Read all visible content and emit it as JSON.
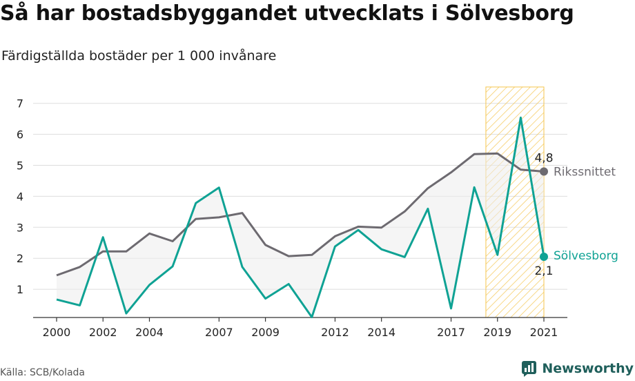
{
  "header": {
    "title": "Så har bostadsbyggandet utvecklats i Sölvesborg",
    "subtitle": "Färdigställda bostäder per 1 000 invånare"
  },
  "footer": {
    "source": "Källa: SCB/Kolada",
    "brand": "Newsworthy"
  },
  "colors": {
    "national": "#6d6a70",
    "local": "#0fa294",
    "band": "#f5c54e",
    "grid": "#dddddd",
    "fill": "#ededed",
    "brand": "#1f5f5b"
  },
  "chart_data": {
    "type": "line",
    "x": [
      2000,
      2001,
      2002,
      2003,
      2004,
      2005,
      2006,
      2007,
      2008,
      2009,
      2010,
      2011,
      2012,
      2013,
      2014,
      2015,
      2016,
      2017,
      2018,
      2019,
      2020,
      2021
    ],
    "xticks": [
      "2000",
      "2002",
      "2004",
      "2007",
      "2009",
      "2012",
      "2014",
      "2017",
      "2019",
      "2021"
    ],
    "yticks": [
      "1",
      "2",
      "3",
      "4",
      "5",
      "6",
      "7"
    ],
    "ylim": [
      0,
      7.5
    ],
    "grid": true,
    "highlight_range": [
      2018.5,
      2021
    ],
    "series": [
      {
        "name": "Rikssnittet",
        "end_label": "4,8",
        "values": [
          1.45,
          1.72,
          2.22,
          2.22,
          2.8,
          2.55,
          3.27,
          3.32,
          3.46,
          2.43,
          2.07,
          2.11,
          2.71,
          3.02,
          2.99,
          3.51,
          4.26,
          4.77,
          5.36,
          5.38,
          4.86,
          4.8
        ]
      },
      {
        "name": "Sölvesborg",
        "end_label": "2,1",
        "values": [
          0.67,
          0.48,
          2.68,
          0.22,
          1.14,
          1.74,
          3.78,
          4.28,
          1.72,
          0.7,
          1.17,
          0.1,
          2.38,
          2.91,
          2.29,
          2.04,
          3.6,
          0.38,
          4.29,
          2.11,
          6.54,
          2.05
        ]
      }
    ]
  }
}
